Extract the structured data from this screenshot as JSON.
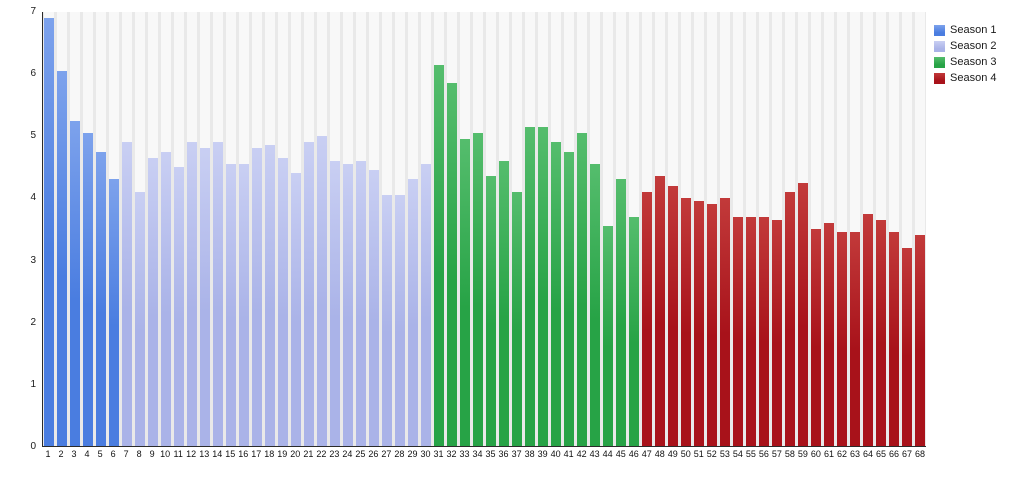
{
  "chart_data": {
    "type": "bar",
    "title": "",
    "xlabel": "",
    "ylabel": "",
    "ylim": [
      0,
      7
    ],
    "yticks": [
      0,
      1,
      2,
      3,
      4,
      5,
      6,
      7
    ],
    "grid": false,
    "legend_position": "top-right",
    "plot_background": "#e9e9e9",
    "track_background": "#f8f8f8",
    "axis_color": "#2a2a2a",
    "categories": [
      "1",
      "2",
      "3",
      "4",
      "5",
      "6",
      "7",
      "8",
      "9",
      "10",
      "11",
      "12",
      "13",
      "14",
      "15",
      "16",
      "17",
      "18",
      "19",
      "20",
      "21",
      "22",
      "23",
      "24",
      "25",
      "26",
      "27",
      "28",
      "29",
      "30",
      "31",
      "32",
      "33",
      "34",
      "35",
      "36",
      "37",
      "38",
      "39",
      "40",
      "41",
      "42",
      "43",
      "44",
      "45",
      "46",
      "47",
      "48",
      "49",
      "50",
      "51",
      "52",
      "53",
      "54",
      "55",
      "56",
      "57",
      "58",
      "59",
      "60",
      "61",
      "62",
      "63",
      "64",
      "65",
      "66",
      "67",
      "68"
    ],
    "series": [
      {
        "name": "Season 1",
        "color": "#4a7de0",
        "color_light": "#7da2ec",
        "values": [
          6.9,
          6.05,
          5.25,
          5.05,
          4.75,
          4.3
        ]
      },
      {
        "name": "Season 2",
        "color": "#aab3e8",
        "color_light": "#c9cff3",
        "values": [
          4.9,
          4.1,
          4.65,
          4.75,
          4.5,
          4.9,
          4.8,
          4.9,
          4.55,
          4.55,
          4.8,
          4.85,
          4.65,
          4.4,
          4.9,
          5.0,
          4.6,
          4.55,
          4.6,
          4.45,
          4.05,
          4.05,
          4.3,
          4.55
        ]
      },
      {
        "name": "Season 3",
        "color": "#27a346",
        "color_light": "#55bd6d",
        "values": [
          6.15,
          5.85,
          4.95,
          5.05,
          4.35,
          4.6,
          4.1,
          5.15,
          5.15,
          4.9,
          4.75,
          5.05,
          4.55,
          3.55,
          4.3,
          3.7
        ]
      },
      {
        "name": "Season 4",
        "color": "#a8121a",
        "color_light": "#c23a3a",
        "values": [
          4.1,
          4.35,
          4.2,
          4.0,
          3.95,
          3.9,
          4.0,
          3.7,
          3.7,
          3.7,
          3.65,
          4.1,
          4.25,
          3.5,
          3.6,
          3.45,
          3.45,
          3.75,
          3.65,
          3.45,
          3.2,
          3.4
        ]
      }
    ]
  }
}
